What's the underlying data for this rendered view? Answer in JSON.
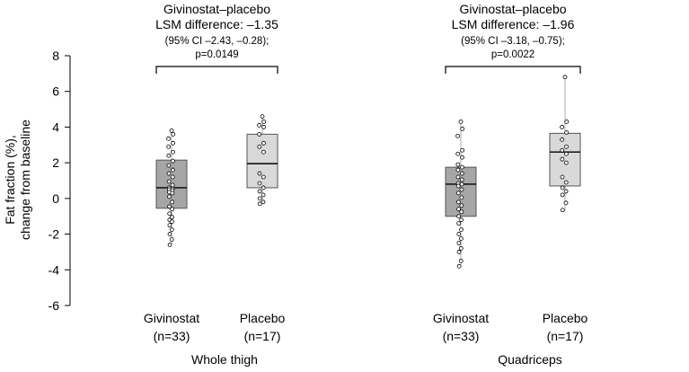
{
  "chart_data": {
    "type": "box",
    "ylabel_lines": [
      "Fat fraction (%),",
      "change from baseline"
    ],
    "ylim": [
      -6,
      8
    ],
    "yticks": [
      -6,
      -4,
      -2,
      0,
      2,
      4,
      6,
      8
    ],
    "groups": [
      {
        "name": "Whole thigh",
        "comparison": {
          "title": "Givinostat–placebo",
          "lsm": "LSM difference: –1.35",
          "ci": "(95% CI –2.43, –0.28);",
          "p": "p=0.0149"
        },
        "boxes": [
          {
            "label": "Givinostat",
            "n": "(n=33)",
            "fill": "#a6a6a6",
            "whisker_min": -2.6,
            "q1": -0.55,
            "median": 0.6,
            "q3": 2.15,
            "whisker_max": 3.8,
            "points": [
              3.8,
              3.6,
              3.35,
              3.1,
              2.9,
              2.6,
              2.4,
              2.1,
              1.85,
              1.6,
              1.4,
              1.2,
              0.95,
              0.75,
              0.6,
              0.55,
              0.5,
              0.45,
              0.35,
              0.3,
              0.1,
              -0.2,
              -0.45,
              -0.6,
              -0.85,
              -1.05,
              -1.2,
              -1.3,
              -1.5,
              -1.75,
              -2.0,
              -2.3,
              -2.6
            ]
          },
          {
            "label": "Placebo",
            "n": "(n=17)",
            "fill": "#d9d9d9",
            "whisker_min": -0.3,
            "q1": 0.6,
            "median": 1.95,
            "q3": 3.6,
            "whisker_max": 4.6,
            "points": [
              4.6,
              4.3,
              4.1,
              4.0,
              3.6,
              3.1,
              2.9,
              2.6,
              1.4,
              1.2,
              0.85,
              0.6,
              0.4,
              0.2,
              0.0,
              -0.2,
              -0.3
            ]
          }
        ]
      },
      {
        "name": "Quadriceps",
        "comparison": {
          "title": "Givinostat–placebo",
          "lsm": "LSM difference: –1.96",
          "ci": "(95% CI –3.18, –0.75);",
          "p": "p=0.0022"
        },
        "boxes": [
          {
            "label": "Givinostat",
            "n": "(n=33)",
            "fill": "#a6a6a6",
            "whisker_min": -3.8,
            "q1": -1.0,
            "median": 0.8,
            "q3": 1.75,
            "whisker_max": 4.3,
            "points": [
              4.3,
              3.9,
              3.5,
              2.7,
              2.5,
              2.3,
              1.9,
              1.75,
              1.6,
              1.4,
              1.2,
              1.05,
              0.85,
              0.8,
              0.7,
              0.5,
              0.3,
              0.05,
              -0.2,
              -0.4,
              -0.6,
              -0.75,
              -1.0,
              -1.2,
              -1.4,
              -1.75,
              -2.0,
              -2.25,
              -2.5,
              -2.8,
              -3.0,
              -3.5,
              -3.8
            ]
          },
          {
            "label": "Placebo",
            "n": "(n=17)",
            "fill": "#d9d9d9",
            "whisker_min": -0.65,
            "q1": 0.7,
            "median": 2.6,
            "q3": 3.65,
            "whisker_max": 6.8,
            "points": [
              6.8,
              4.3,
              4.0,
              3.7,
              3.3,
              2.9,
              2.7,
              2.5,
              2.2,
              2.0,
              1.2,
              0.9,
              0.6,
              0.4,
              0.2,
              -0.25,
              -0.65
            ]
          }
        ]
      }
    ]
  }
}
